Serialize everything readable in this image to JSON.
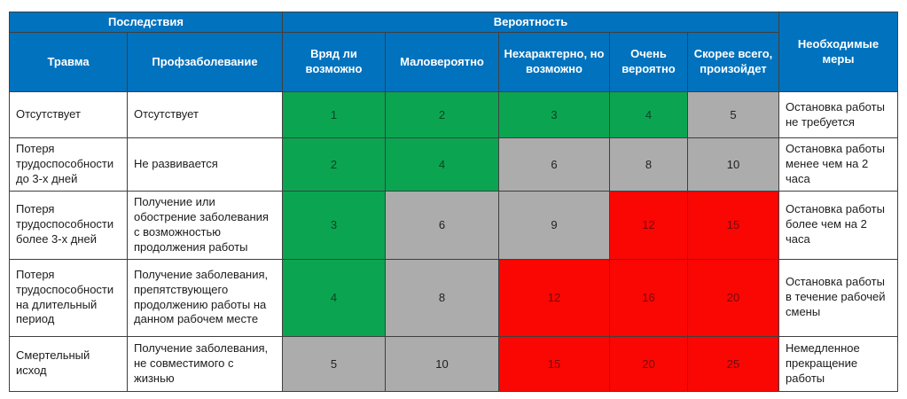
{
  "palette": {
    "header_blue": "#0072BE",
    "green": {
      "bg": "#0BA551",
      "num": "#0B4424"
    },
    "gray": {
      "bg": "#ACACAC",
      "num": "#1f1f1f"
    },
    "red": {
      "bg": "#FA0603",
      "num": "#750B0B"
    },
    "border": "#3f3f3f"
  },
  "header": {
    "consequences": "Последствия",
    "probability": "Вероятность",
    "measures": "Необходимые меры",
    "sub": [
      "Травма",
      "Профзаболевание",
      "Вряд ли возможно",
      "Маловероятно",
      "Нехарактерно, но возможно",
      "Очень вероятно",
      "Скорее всего, произойдет"
    ]
  },
  "rows": [
    {
      "injury": "Отсутствует",
      "disease": "Отсутствует",
      "values": [
        1,
        2,
        3,
        4,
        5
      ],
      "cell_colors": [
        "green",
        "green",
        "green",
        "green",
        "gray"
      ],
      "measure": "Остановка работы не требуется"
    },
    {
      "injury": "Потеря трудоспособности до 3-х дней",
      "disease": "Не развивается",
      "values": [
        2,
        4,
        6,
        8,
        10
      ],
      "cell_colors": [
        "green",
        "green",
        "gray",
        "gray",
        "gray"
      ],
      "measure": "Остановка работы менее чем на 2 часа"
    },
    {
      "injury": "Потеря трудоспособности более 3-х дней",
      "disease": "Получение или обострение заболевания с возможностью продолжения работы",
      "values": [
        3,
        6,
        9,
        12,
        15
      ],
      "cell_colors": [
        "green",
        "gray",
        "gray",
        "red",
        "red"
      ],
      "measure": "Остановка работы более чем на 2 часа"
    },
    {
      "injury": "Потеря трудоспособности на длительный период",
      "disease": "Получение заболевания, препятствующего продолжению работы на данном рабочем месте",
      "values": [
        4,
        8,
        12,
        16,
        20
      ],
      "cell_colors": [
        "green",
        "gray",
        "red",
        "red",
        "red"
      ],
      "measure": "Остановка работы в течение рабочей смены"
    },
    {
      "injury": "Смертельный исход",
      "disease": "Получение заболевания, не совместимого с жизнью",
      "values": [
        5,
        10,
        15,
        20,
        25
      ],
      "cell_colors": [
        "gray",
        "gray",
        "red",
        "red",
        "red"
      ],
      "measure": "Немедленное прекращение работы"
    }
  ]
}
